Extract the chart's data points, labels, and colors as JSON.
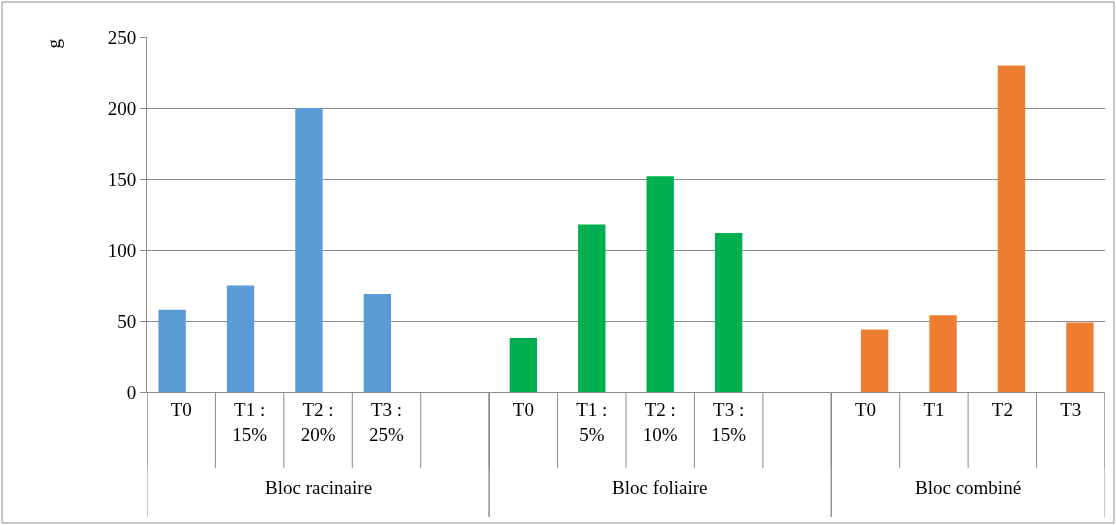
{
  "chart_data": {
    "type": "bar",
    "ylabel": "g",
    "categories": [
      "T0",
      "T1 : 15%",
      "T2 : 20%",
      "T3 : 25%",
      null,
      "T0",
      "T1 : 5%",
      "T2 : 10%",
      "T3 : 15%",
      null,
      "T0",
      "T1",
      "T2",
      "T3"
    ],
    "series": [
      {
        "color": "#5b9bd5",
        "values": [
          58,
          75,
          200,
          69,
          null,
          null,
          null,
          null,
          null,
          null,
          null,
          null,
          null,
          null
        ]
      },
      {
        "color": "#00b050",
        "values": [
          null,
          null,
          null,
          null,
          null,
          38,
          118,
          152,
          112,
          null,
          null,
          null,
          null,
          null
        ]
      },
      {
        "color": "#ed7d31",
        "values": [
          null,
          null,
          null,
          null,
          null,
          null,
          null,
          null,
          null,
          null,
          44,
          54,
          230,
          49
        ]
      }
    ],
    "annotations": [
      "Bloc racinaire",
      "Bloc foliaire",
      "Bloc combiné"
    ],
    "ylim": [
      0,
      250
    ],
    "yticks": [
      0,
      50,
      100,
      150,
      200,
      250
    ],
    "grid": "y"
  }
}
